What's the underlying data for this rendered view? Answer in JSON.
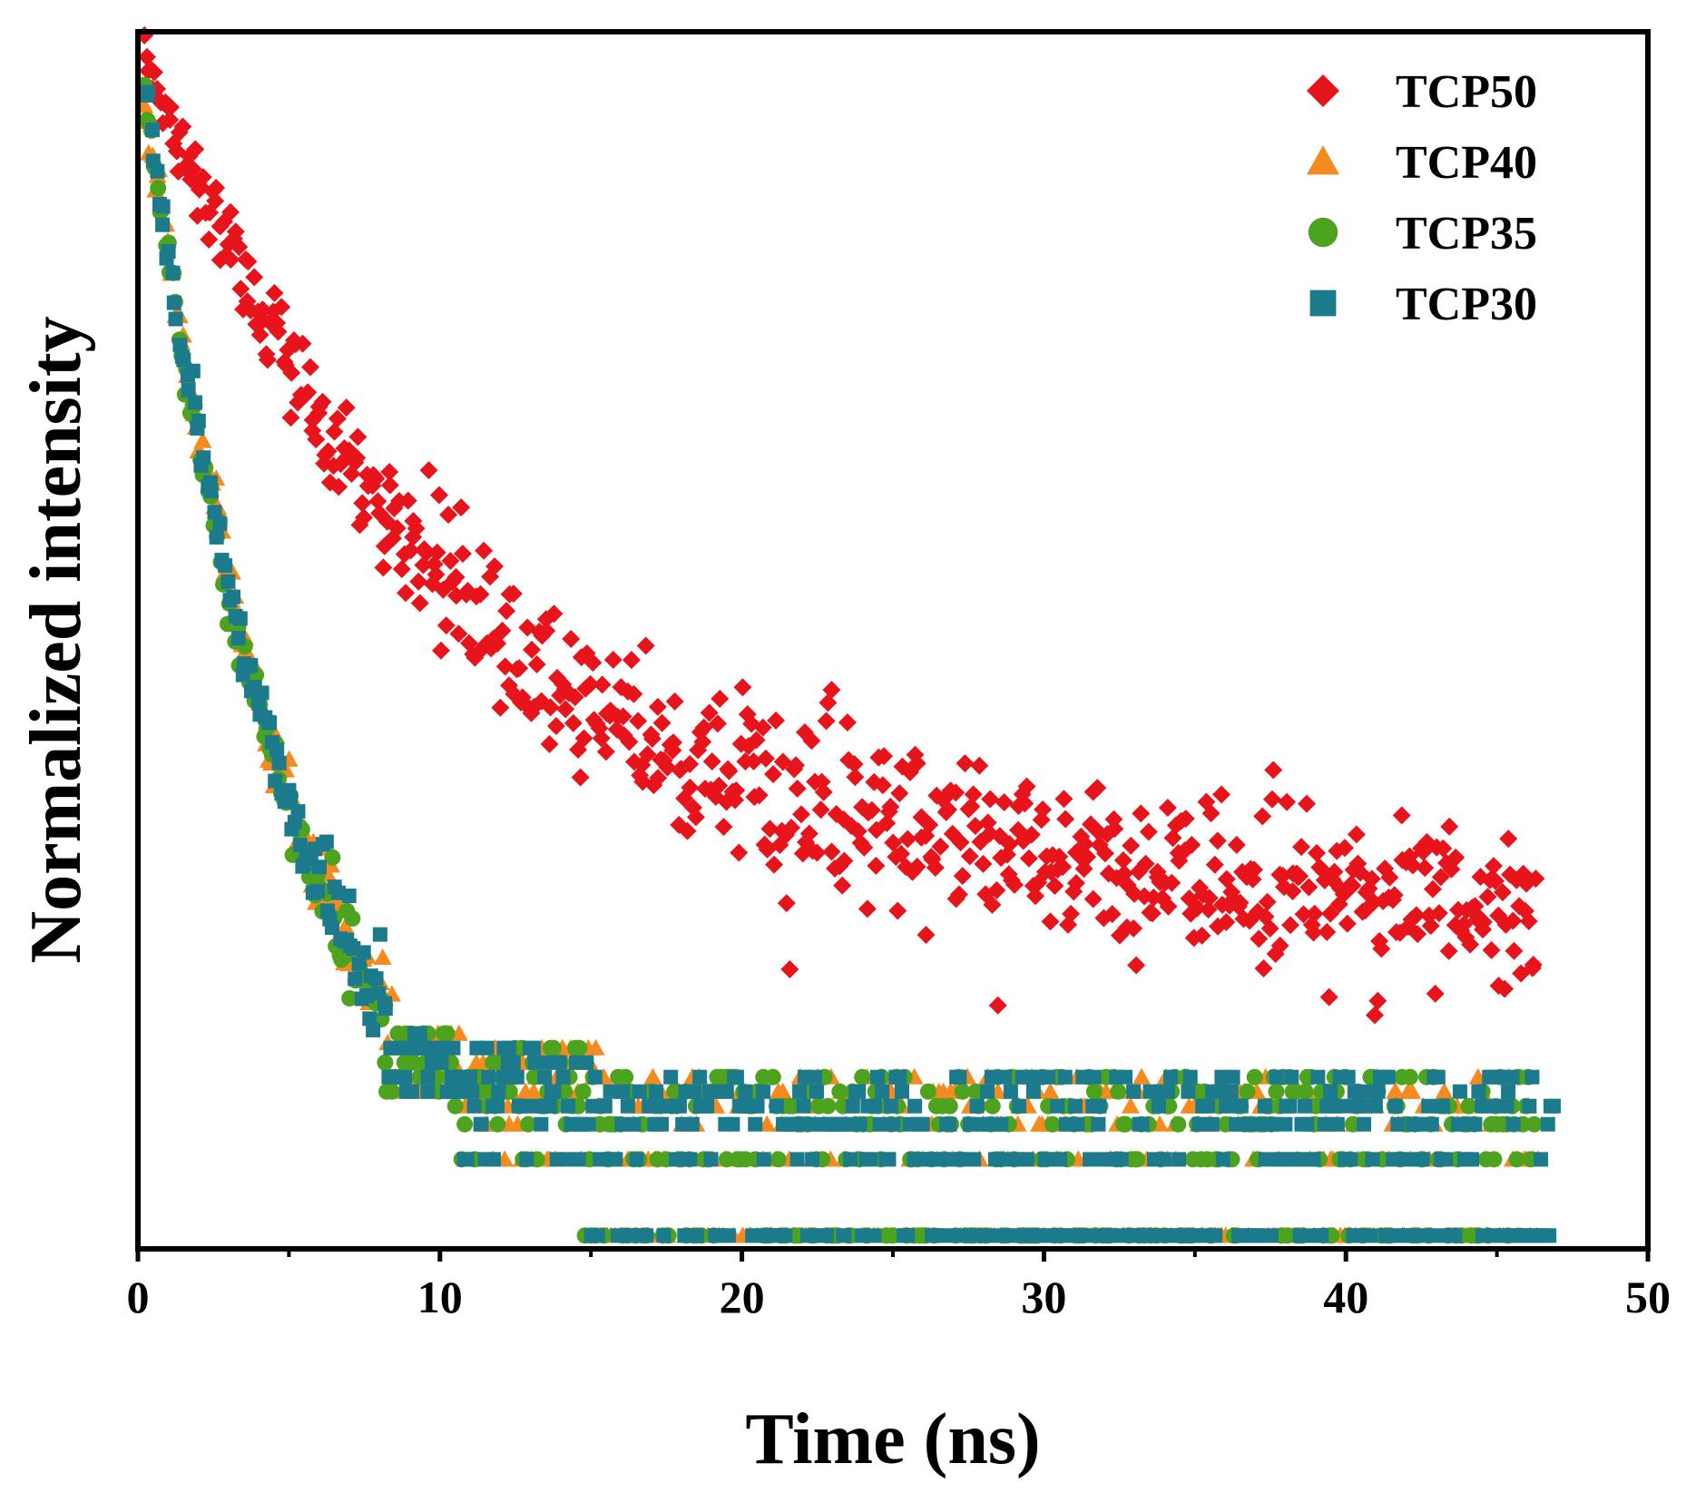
{
  "chart_data": {
    "type": "scatter",
    "title": "",
    "xlabel": "Time (ns)",
    "ylabel": "Normalized intensity",
    "xlim": [
      0,
      50
    ],
    "ylim": [
      0,
      1
    ],
    "y_scale": "log (no tick labels shown)",
    "xticks": [
      0,
      10,
      20,
      30,
      40,
      50
    ],
    "x_minor_ticks": [
      5,
      15,
      25,
      35,
      45
    ],
    "legend_position": "top-right",
    "series": [
      {
        "name": "TCP50",
        "marker": "diamond",
        "color": "#e8141b",
        "tau_ns": 10.5,
        "baseline": 0.275,
        "noise": 0.035,
        "t_start": 0.2,
        "t_end": 46.3,
        "n_points": 650,
        "discrete_level_count": 0
      },
      {
        "name": "TCP40",
        "marker": "triangle",
        "color": "#f58a1f",
        "tau_ns": 5.1,
        "baseline": 0.0,
        "noise": 0.025,
        "t_start": 0.2,
        "t_end": 46.4,
        "n_points": 520,
        "discrete_level_count": 9
      },
      {
        "name": "TCP35",
        "marker": "circle",
        "color": "#4ea31e",
        "tau_ns": 4.9,
        "baseline": 0.0,
        "noise": 0.025,
        "t_start": 0.2,
        "t_end": 46.2,
        "n_points": 520,
        "discrete_level_count": 9
      },
      {
        "name": "TCP30",
        "marker": "square",
        "color": "#1b7a8c",
        "tau_ns": 5.0,
        "baseline": 0.0,
        "noise": 0.025,
        "t_start": 0.2,
        "t_end": 46.9,
        "n_points": 560,
        "discrete_level_count": 9
      }
    ],
    "discrete_levels": [
      0.008,
      0.071,
      0.1,
      0.115,
      0.127,
      0.139,
      0.151,
      0.163,
      0.175
    ]
  }
}
